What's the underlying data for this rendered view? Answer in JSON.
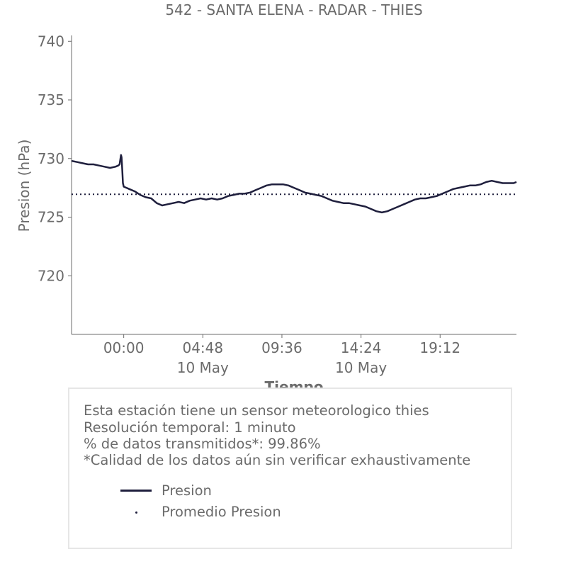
{
  "chart_data": {
    "type": "line",
    "title": "542 - SANTA ELENA - RADAR - THIES",
    "xlabel": "Tiempo",
    "ylabel": "Presion (hPa)",
    "ylim": [
      715,
      740.5
    ],
    "y_ticks": [
      720,
      725,
      730,
      735,
      740
    ],
    "xlim_minutes": [
      -190,
      1430
    ],
    "x_ticks": [
      {
        "minutes": 0,
        "label": "00:00",
        "sublabel": ""
      },
      {
        "minutes": 288,
        "label": "04:48",
        "sublabel": "10 May"
      },
      {
        "minutes": 576,
        "label": "09:36",
        "sublabel": ""
      },
      {
        "minutes": 864,
        "label": "14:24",
        "sublabel": "10 May"
      },
      {
        "minutes": 1152,
        "label": "19:12",
        "sublabel": ""
      }
    ],
    "grid": false,
    "series": [
      {
        "name": "Presion",
        "style": "solid",
        "color": "#1f1f3d",
        "x_minutes": [
          -190,
          -170,
          -150,
          -130,
          -110,
          -90,
          -70,
          -50,
          -30,
          -20,
          -15,
          -10,
          -8,
          -5,
          -3,
          0,
          10,
          20,
          40,
          60,
          80,
          100,
          120,
          140,
          160,
          180,
          200,
          220,
          240,
          260,
          280,
          300,
          320,
          340,
          360,
          380,
          400,
          420,
          440,
          460,
          480,
          500,
          520,
          540,
          560,
          580,
          600,
          620,
          640,
          660,
          680,
          700,
          720,
          740,
          760,
          780,
          800,
          820,
          840,
          860,
          880,
          900,
          920,
          940,
          960,
          980,
          1000,
          1020,
          1040,
          1060,
          1080,
          1100,
          1120,
          1140,
          1160,
          1180,
          1200,
          1220,
          1240,
          1260,
          1280,
          1300,
          1320,
          1340,
          1360,
          1380,
          1400,
          1420,
          1430
        ],
        "values": [
          729.8,
          729.7,
          729.6,
          729.5,
          729.5,
          729.4,
          729.3,
          729.2,
          729.3,
          729.4,
          729.5,
          730.3,
          730.1,
          728.9,
          727.9,
          727.6,
          727.5,
          727.4,
          727.2,
          726.9,
          726.7,
          726.6,
          726.2,
          726.0,
          726.1,
          726.2,
          726.3,
          726.2,
          726.4,
          726.5,
          726.6,
          726.5,
          726.6,
          726.5,
          726.6,
          726.8,
          726.9,
          727.0,
          727.0,
          727.1,
          727.3,
          727.5,
          727.7,
          727.8,
          727.8,
          727.8,
          727.7,
          727.5,
          727.3,
          727.1,
          727.0,
          726.9,
          726.8,
          726.6,
          726.4,
          726.3,
          726.2,
          726.2,
          726.1,
          726.0,
          725.9,
          725.7,
          725.5,
          725.4,
          725.5,
          725.7,
          725.9,
          726.1,
          726.3,
          726.5,
          726.6,
          726.6,
          726.7,
          726.8,
          727.0,
          727.2,
          727.4,
          727.5,
          727.6,
          727.7,
          727.7,
          727.8,
          728.0,
          728.1,
          728.0,
          727.9,
          727.9,
          727.9,
          728.0
        ]
      },
      {
        "name": "Promedio Presion",
        "style": "dotted",
        "color": "#1f1f3d",
        "x_minutes": [
          -190,
          1430
        ],
        "values": [
          726.95,
          726.95
        ]
      }
    ]
  },
  "info": {
    "line1": "Esta estación tiene un sensor meteorologico thies",
    "line2": "Resolución temporal: 1 minuto",
    "line3": "% de datos transmitidos*: 99.86%",
    "line4": "*Calidad de los datos aún sin verificar exhaustivamente"
  },
  "legend": {
    "item1": "Presion",
    "item2": "Promedio Presion"
  }
}
